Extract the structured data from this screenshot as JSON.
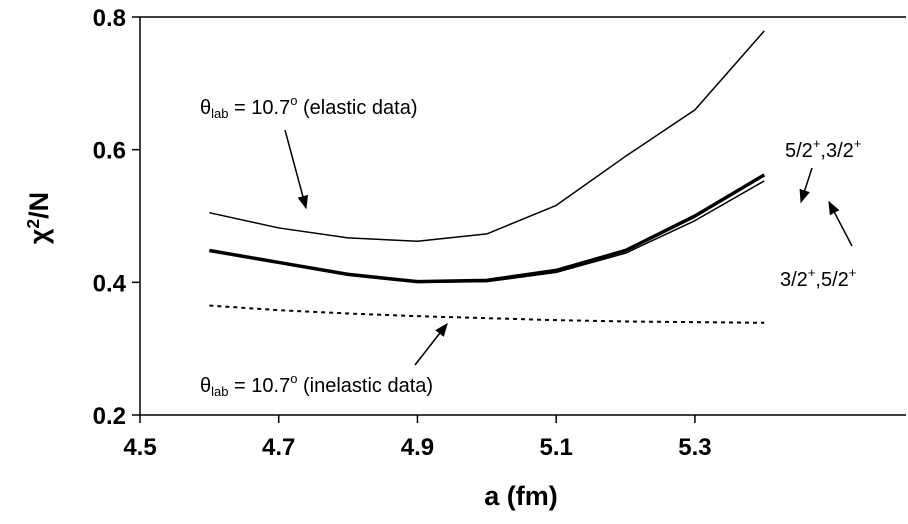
{
  "chart_data": {
    "type": "line",
    "x_label": "a (fm)",
    "y_label": [
      {
        "text": "χ",
        "script": "normal"
      },
      {
        "text": "2",
        "script": "sup"
      },
      {
        "text": "/N",
        "script": "normal"
      }
    ],
    "x": [
      4.6,
      4.7,
      4.8,
      4.9,
      5.0,
      5.1,
      5.2,
      5.3,
      5.4
    ],
    "xlim": [
      4.5,
      5.6
    ],
    "xticks": [
      4.5,
      4.7,
      4.9,
      5.1,
      5.3
    ],
    "ylim": [
      0.2,
      0.8
    ],
    "yticks": [
      0.2,
      0.4,
      0.6,
      0.8
    ],
    "series": [
      {
        "color": "#000000",
        "width": 1.5,
        "dash": false,
        "values": [
          0.505,
          0.482,
          0.467,
          0.462,
          0.473,
          0.516,
          0.59,
          0.66,
          0.779
        ]
      },
      {
        "color": "#000000",
        "width": 3.5,
        "dash": false,
        "values": [
          0.448,
          0.43,
          0.412,
          0.401,
          0.403,
          0.418,
          0.448,
          0.5,
          0.562
        ]
      },
      {
        "color": "#000000",
        "width": 1.5,
        "dash": false,
        "values": [
          0.448,
          0.429,
          0.411,
          0.4,
          0.401,
          0.415,
          0.444,
          0.493,
          0.553
        ]
      },
      {
        "color": "#000000",
        "width": 2,
        "dash": true,
        "values": [
          0.365,
          0.358,
          0.353,
          0.349,
          0.346,
          0.343,
          0.341,
          0.34,
          0.339
        ]
      }
    ],
    "annotations": [
      {
        "parts": [
          {
            "text": "θ",
            "script": "normal"
          },
          {
            "text": "lab",
            "script": "sub"
          },
          {
            "text": " = 10.7",
            "script": "normal"
          },
          {
            "text": "o",
            "script": "sup"
          },
          {
            "text": " (elastic data)",
            "script": "normal"
          }
        ]
      },
      {
        "parts": [
          {
            "text": "5/2",
            "script": "normal"
          },
          {
            "text": "+",
            "script": "sup"
          },
          {
            "text": ",3/2",
            "script": "normal"
          },
          {
            "text": "+",
            "script": "sup"
          }
        ]
      },
      {
        "parts": [
          {
            "text": "3/2",
            "script": "normal"
          },
          {
            "text": "+",
            "script": "sup"
          },
          {
            "text": ",5/2",
            "script": "normal"
          },
          {
            "text": "+",
            "script": "sup"
          }
        ]
      },
      {
        "parts": [
          {
            "text": "θ",
            "script": "normal"
          },
          {
            "text": "lab",
            "script": "sub"
          },
          {
            "text": " = 10.7",
            "script": "normal"
          },
          {
            "text": "o",
            "script": "sup"
          },
          {
            "text": " (inelastic data)",
            "script": "normal"
          }
        ]
      }
    ]
  }
}
